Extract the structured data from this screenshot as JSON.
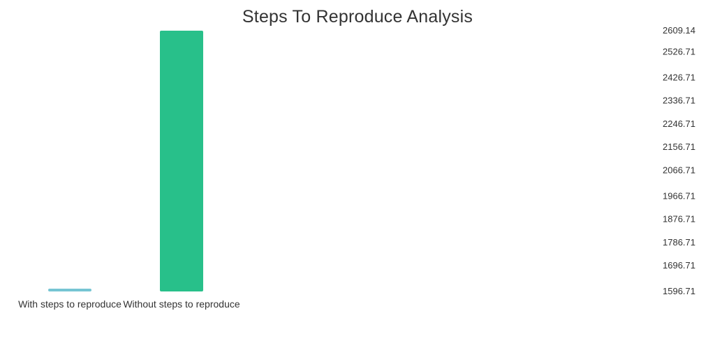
{
  "chart_data": {
    "type": "bar",
    "title": "Steps To Reproduce Analysis",
    "xlabel": "",
    "ylabel": "",
    "categories": [
      "With steps to reproduce",
      "Without steps to reproduce"
    ],
    "values": [
      1596.71,
      2609.14
    ],
    "ylim": [
      1596.71,
      2609.14
    ],
    "y_ticks": [
      1596.71,
      1696.71,
      1786.71,
      1876.71,
      1966.71,
      2066.71,
      2156.71,
      2246.71,
      2336.71,
      2426.71,
      2526.71,
      2609.14
    ],
    "y_tick_labels": [
      "1596.71",
      "1696.71",
      "1786.71",
      "1876.71",
      "1966.71",
      "2066.71",
      "2156.71",
      "2246.71",
      "2336.71",
      "2426.71",
      "2526.71",
      "2609.14"
    ],
    "y_axis_side": "right",
    "grid": false,
    "colors": [
      "#76c5d3",
      "#28c08a"
    ]
  }
}
